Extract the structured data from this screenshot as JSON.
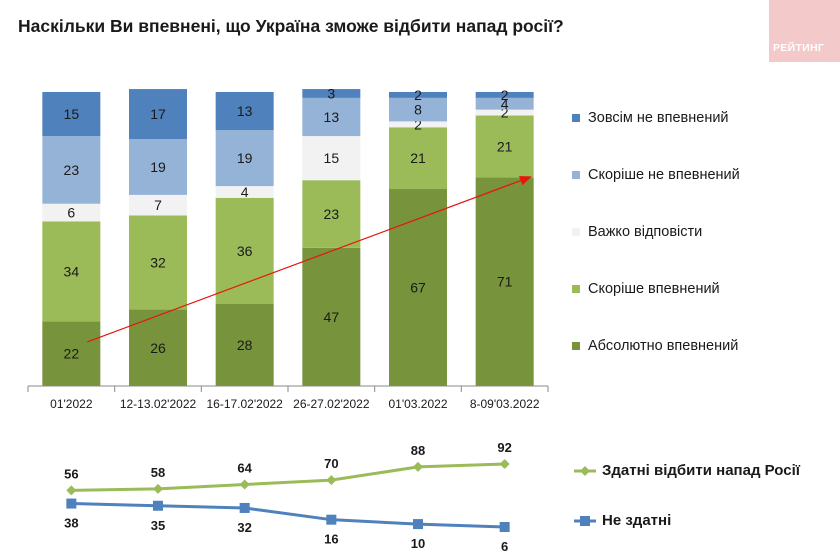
{
  "title": "Наскільки Ви впевнені, що Україна зможе відбити напад росії?",
  "logo_text": "РЕЙТИНГ",
  "colors": {
    "absolute": "#77933c",
    "rather_conf": "#9bbb59",
    "hard": "#f2f2f2",
    "rather_not": "#95b3d7",
    "not_at_all": "#4f81bd",
    "trend_arrow": "#e8150c",
    "line_able": "#9bbb59",
    "line_not": "#4f81bd",
    "logo_bg": "#f4c9c9"
  },
  "chart_data": [
    {
      "type": "bar",
      "stacked": true,
      "categories": [
        "01'2022",
        "12-13.02'2022",
        "16-17.02'2022",
        "26-27.02'2022",
        "01'03.2022",
        "8-09'03.2022"
      ],
      "ylim": [
        0,
        100
      ],
      "series": [
        {
          "key": "absolute",
          "name": "Абсолютно впевнений",
          "values": [
            22,
            26,
            28,
            47,
            67,
            71
          ]
        },
        {
          "key": "rather_conf",
          "name": "Скоріше впевнений",
          "values": [
            34,
            32,
            36,
            23,
            21,
            21
          ]
        },
        {
          "key": "hard",
          "name": "Важко відповісти",
          "values": [
            6,
            7,
            4,
            15,
            2,
            2
          ]
        },
        {
          "key": "rather_not",
          "name": "Скоріше не впевнений",
          "values": [
            23,
            19,
            19,
            13,
            8,
            4
          ]
        },
        {
          "key": "not_at_all",
          "name": "Зовсім не впевнений",
          "values": [
            15,
            17,
            13,
            3,
            2,
            2
          ]
        }
      ],
      "legend": [
        "Зовсім не впевнений",
        "Скоріше не впевнений",
        "Важко відповісти",
        "Скоріше впевнений",
        "Абсолютно впевнений"
      ],
      "legend_position": "right",
      "annotation": "trend arrow"
    },
    {
      "type": "line",
      "x": [
        "01'2022",
        "12-13.02'2022",
        "16-17.02'2022",
        "26-27.02'2022",
        "01'03.2022",
        "8-09'03.2022"
      ],
      "series": [
        {
          "key": "able",
          "name": "Здатні відбити напад Росії",
          "values": [
            56,
            58,
            64,
            70,
            88,
            92
          ]
        },
        {
          "key": "not",
          "name": "Не здатні",
          "values": [
            38,
            35,
            32,
            16,
            10,
            6
          ]
        }
      ],
      "legend_position": "right"
    }
  ]
}
